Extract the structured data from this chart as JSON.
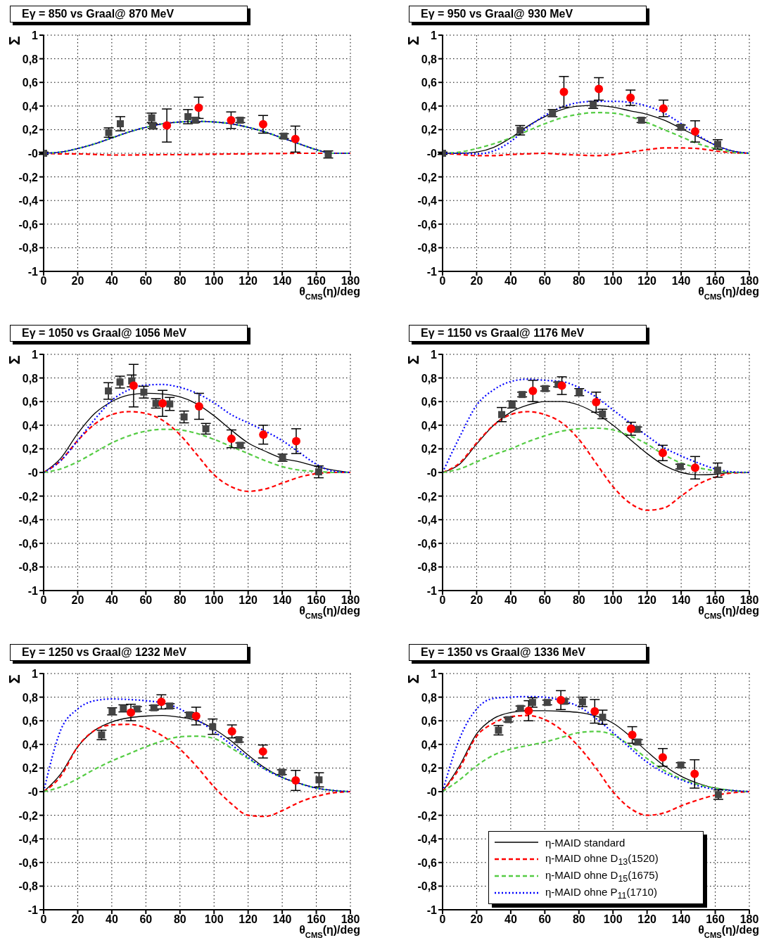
{
  "chart_data": [
    {
      "type": "line",
      "title": "Eγ = 850 vs Graal@ 870 MeV",
      "xlabel": "θ$_{CMS}$(η)/deg",
      "ylabel": "Σ",
      "x": [
        0,
        10,
        20,
        30,
        40,
        50,
        60,
        70,
        80,
        90,
        100,
        110,
        120,
        130,
        140,
        150,
        160,
        170,
        180
      ],
      "xlim": [
        0,
        180
      ],
      "xticks": [
        0,
        20,
        40,
        60,
        80,
        100,
        120,
        140,
        160,
        180
      ],
      "ylim": [
        -1,
        1
      ],
      "yticks": [
        {
          "value": -1,
          "label": "-1"
        },
        {
          "value": -0.8,
          "label": "-0,8"
        },
        {
          "value": -0.6,
          "label": "-0,6"
        },
        {
          "value": -0.4,
          "label": "-0,4"
        },
        {
          "value": -0.2,
          "label": "-0,2"
        },
        {
          "value": 0,
          "label": "-0"
        },
        {
          "value": 0.2,
          "label": "0,2"
        },
        {
          "value": 0.4,
          "label": "0,4"
        },
        {
          "value": 0.6,
          "label": "0,6"
        },
        {
          "value": 0.8,
          "label": "0,8"
        },
        {
          "value": 1,
          "label": "1"
        }
      ],
      "grid": true,
      "legend": false,
      "series": [
        {
          "color": "#000000",
          "line_style": "solid",
          "marker": "none",
          "values": [
            0,
            0.01,
            0.04,
            0.08,
            0.13,
            0.18,
            0.22,
            0.25,
            0.265,
            0.27,
            0.265,
            0.25,
            0.22,
            0.18,
            0.13,
            0.08,
            0.03,
            0,
            0
          ]
        },
        {
          "color": "#ff0000",
          "line_style": "dashed",
          "marker": "none",
          "values": [
            0,
            -0.005,
            -0.005,
            -0.01,
            -0.015,
            -0.015,
            -0.013,
            -0.012,
            -0.012,
            -0.01,
            -0.008,
            -0.006,
            -0.005,
            -0.003,
            -0.002,
            0,
            0,
            0,
            0
          ]
        },
        {
          "color": "#55cc44",
          "line_style": "dashed",
          "marker": "none",
          "values": [
            0,
            0.01,
            0.04,
            0.08,
            0.13,
            0.18,
            0.22,
            0.25,
            0.265,
            0.27,
            0.265,
            0.25,
            0.22,
            0.18,
            0.13,
            0.08,
            0.03,
            0,
            0
          ]
        },
        {
          "color": "#0000ff",
          "line_style": "dotted",
          "marker": "none",
          "values": [
            0,
            0.01,
            0.04,
            0.08,
            0.13,
            0.18,
            0.22,
            0.25,
            0.265,
            0.27,
            0.265,
            0.25,
            0.22,
            0.18,
            0.13,
            0.08,
            0.03,
            0,
            0
          ]
        },
        {
          "type": "scatter",
          "marker": "square",
          "color": "#444444",
          "x": [
            0,
            38.2,
            45,
            63.4,
            64,
            84.7,
            89,
            115.4,
            141,
            167
          ],
          "values": [
            0,
            0.175,
            0.25,
            0.3,
            0.23,
            0.31,
            0.28,
            0.28,
            0.145,
            -0.01
          ],
          "errors": [
            0.01,
            0.04,
            0.06,
            0.04,
            0.02,
            0.06,
            0.02,
            0.02,
            0.02,
            0.03
          ]
        },
        {
          "type": "scatter",
          "marker": "circle",
          "color": "#ff0000",
          "x": [
            72.3,
            91,
            110,
            128.8,
            147.7
          ],
          "values": [
            0.235,
            0.385,
            0.28,
            0.245,
            0.12
          ],
          "errors": [
            0.14,
            0.09,
            0.07,
            0.075,
            0.11
          ]
        }
      ]
    },
    {
      "type": "line",
      "title": "Eγ = 950 vs Graal@ 930 MeV",
      "xlabel": "θ$_{CMS}$(η)/deg",
      "ylabel": "Σ",
      "x": [
        0,
        10,
        20,
        30,
        40,
        50,
        60,
        70,
        80,
        90,
        100,
        110,
        120,
        130,
        140,
        150,
        160,
        170,
        180
      ],
      "xlim": [
        0,
        180
      ],
      "xticks": [
        0,
        20,
        40,
        60,
        80,
        100,
        120,
        140,
        160,
        180
      ],
      "ylim": [
        -1,
        1
      ],
      "yticks": [
        {
          "value": -1,
          "label": "-1"
        },
        {
          "value": -0.8,
          "label": "-0,8"
        },
        {
          "value": -0.6,
          "label": "-0,6"
        },
        {
          "value": -0.4,
          "label": "-0,4"
        },
        {
          "value": -0.2,
          "label": "-0,2"
        },
        {
          "value": 0,
          "label": "-0"
        },
        {
          "value": 0.2,
          "label": "0,2"
        },
        {
          "value": 0.4,
          "label": "0,4"
        },
        {
          "value": 0.6,
          "label": "0,6"
        },
        {
          "value": 0.8,
          "label": "0,8"
        },
        {
          "value": 1,
          "label": "1"
        }
      ],
      "grid": true,
      "legend": false,
      "series": [
        {
          "color": "#000000",
          "line_style": "solid",
          "marker": "none",
          "values": [
            0,
            0,
            0.01,
            0.05,
            0.13,
            0.23,
            0.31,
            0.37,
            0.4,
            0.405,
            0.39,
            0.36,
            0.33,
            0.28,
            0.21,
            0.14,
            0.07,
            0.02,
            0
          ]
        },
        {
          "color": "#ff0000",
          "line_style": "dashed",
          "marker": "none",
          "values": [
            0,
            -0.01,
            -0.02,
            -0.02,
            -0.01,
            -0.005,
            0,
            -0.01,
            -0.015,
            -0.02,
            -0.01,
            0.01,
            0.03,
            0.045,
            0.045,
            0.04,
            0.02,
            0.005,
            0
          ]
        },
        {
          "color": "#55cc44",
          "line_style": "dashed",
          "marker": "none",
          "values": [
            0,
            0.01,
            0.04,
            0.08,
            0.13,
            0.19,
            0.25,
            0.3,
            0.33,
            0.345,
            0.34,
            0.31,
            0.26,
            0.2,
            0.14,
            0.08,
            0.04,
            0.01,
            0
          ]
        },
        {
          "color": "#0000ff",
          "line_style": "dotted",
          "marker": "none",
          "values": [
            0,
            0,
            -0.005,
            0.02,
            0.1,
            0.22,
            0.32,
            0.39,
            0.43,
            0.44,
            0.44,
            0.43,
            0.4,
            0.34,
            0.25,
            0.15,
            0.07,
            0.02,
            0
          ]
        },
        {
          "type": "scatter",
          "marker": "square",
          "color": "#444444",
          "x": [
            0,
            45.5,
            64.5,
            88.4,
            116.7,
            139.8,
            161.4
          ],
          "values": [
            0,
            0.195,
            0.34,
            0.41,
            0.28,
            0.22,
            0.075
          ],
          "errors": [
            0.01,
            0.04,
            0.03,
            0.03,
            0.02,
            0.02,
            0.04
          ]
        },
        {
          "type": "scatter",
          "marker": "circle",
          "color": "#ff0000",
          "x": [
            71.2,
            91.7,
            110.3,
            129.6,
            148.2
          ],
          "values": [
            0.52,
            0.545,
            0.47,
            0.38,
            0.185
          ],
          "errors": [
            0.13,
            0.095,
            0.065,
            0.07,
            0.09
          ]
        }
      ]
    },
    {
      "type": "line",
      "title": "Eγ = 1050 vs Graal@ 1056 MeV",
      "xlabel": "θ$_{CMS}$(η)/deg",
      "ylabel": "Σ",
      "x": [
        0,
        10,
        20,
        30,
        40,
        50,
        60,
        70,
        80,
        90,
        100,
        110,
        120,
        130,
        140,
        150,
        160,
        170,
        180
      ],
      "xlim": [
        0,
        180
      ],
      "xticks": [
        0,
        20,
        40,
        60,
        80,
        100,
        120,
        140,
        160,
        180
      ],
      "ylim": [
        -1,
        1
      ],
      "yticks": [
        {
          "value": -1,
          "label": "-1"
        },
        {
          "value": -0.8,
          "label": "-0,8"
        },
        {
          "value": -0.6,
          "label": "-0,6"
        },
        {
          "value": -0.4,
          "label": "-0,4"
        },
        {
          "value": -0.2,
          "label": "-0,2"
        },
        {
          "value": 0,
          "label": "-0"
        },
        {
          "value": 0.2,
          "label": "0,2"
        },
        {
          "value": 0.4,
          "label": "0,4"
        },
        {
          "value": 0.6,
          "label": "0,6"
        },
        {
          "value": 0.8,
          "label": "0,8"
        },
        {
          "value": 1,
          "label": "1"
        }
      ],
      "grid": true,
      "legend": false,
      "series": [
        {
          "color": "#000000",
          "line_style": "solid",
          "marker": "none",
          "values": [
            0,
            0.12,
            0.33,
            0.5,
            0.6,
            0.655,
            0.67,
            0.665,
            0.64,
            0.58,
            0.48,
            0.36,
            0.25,
            0.18,
            0.12,
            0.09,
            0.05,
            0.02,
            0
          ]
        },
        {
          "color": "#ff0000",
          "line_style": "dashed",
          "marker": "none",
          "values": [
            0,
            0.1,
            0.27,
            0.41,
            0.49,
            0.515,
            0.5,
            0.44,
            0.32,
            0.15,
            -0.02,
            -0.12,
            -0.16,
            -0.14,
            -0.09,
            -0.04,
            -0.01,
            0,
            0
          ]
        },
        {
          "color": "#55cc44",
          "line_style": "dashed",
          "marker": "none",
          "values": [
            0,
            0.03,
            0.09,
            0.17,
            0.25,
            0.31,
            0.35,
            0.365,
            0.36,
            0.33,
            0.28,
            0.22,
            0.16,
            0.1,
            0.05,
            0.02,
            0.01,
            0,
            0
          ]
        },
        {
          "color": "#0000ff",
          "line_style": "dotted",
          "marker": "none",
          "values": [
            0,
            0.1,
            0.27,
            0.45,
            0.61,
            0.7,
            0.74,
            0.745,
            0.72,
            0.67,
            0.59,
            0.49,
            0.42,
            0.35,
            0.27,
            0.17,
            0.07,
            0.01,
            0
          ]
        },
        {
          "type": "scatter",
          "marker": "square",
          "color": "#444444",
          "x": [
            38,
            44.8,
            51.7,
            58.8,
            65.9,
            74,
            82.4,
            95.2,
            115.4,
            140.2,
            161.4
          ],
          "values": [
            0.69,
            0.765,
            0.775,
            0.68,
            0.585,
            0.58,
            0.47,
            0.37,
            0.23,
            0.125,
            0.005
          ],
          "errors": [
            0.07,
            0.05,
            0.05,
            0.05,
            0.04,
            0.055,
            0.05,
            0.045,
            0.02,
            0.03,
            0.05
          ]
        },
        {
          "type": "scatter",
          "marker": "circle",
          "color": "#ff0000",
          "x": [
            52.8,
            69.8,
            91.2,
            110.2,
            128.9,
            148.2
          ],
          "values": [
            0.735,
            0.585,
            0.56,
            0.285,
            0.32,
            0.265
          ],
          "errors": [
            0.18,
            0.11,
            0.11,
            0.075,
            0.08,
            0.105
          ]
        }
      ]
    },
    {
      "type": "line",
      "title": "Eγ = 1150 vs Graal@ 1176 MeV",
      "xlabel": "θ$_{CMS}$(η)/deg",
      "ylabel": "Σ",
      "x": [
        0,
        10,
        20,
        30,
        40,
        50,
        60,
        70,
        80,
        90,
        100,
        110,
        120,
        130,
        140,
        150,
        160,
        170,
        180
      ],
      "xlim": [
        0,
        180
      ],
      "xticks": [
        0,
        20,
        40,
        60,
        80,
        100,
        120,
        140,
        160,
        180
      ],
      "ylim": [
        -1,
        1
      ],
      "yticks": [
        {
          "value": -1,
          "label": "-1"
        },
        {
          "value": -0.8,
          "label": "-0,8"
        },
        {
          "value": -0.6,
          "label": "-0,6"
        },
        {
          "value": -0.4,
          "label": "-0,4"
        },
        {
          "value": -0.2,
          "label": "-0,2"
        },
        {
          "value": 0,
          "label": "-0"
        },
        {
          "value": 0.2,
          "label": "0,2"
        },
        {
          "value": 0.4,
          "label": "0,4"
        },
        {
          "value": 0.6,
          "label": "0,6"
        },
        {
          "value": 0.8,
          "label": "0,8"
        },
        {
          "value": 1,
          "label": "1"
        }
      ],
      "grid": true,
      "legend": false,
      "series": [
        {
          "color": "#000000",
          "line_style": "solid",
          "marker": "none",
          "values": [
            0,
            0.07,
            0.24,
            0.4,
            0.51,
            0.57,
            0.6,
            0.6,
            0.57,
            0.5,
            0.4,
            0.28,
            0.16,
            0.06,
            0,
            -0.02,
            -0.015,
            0,
            0
          ]
        },
        {
          "color": "#ff0000",
          "line_style": "dashed",
          "marker": "none",
          "values": [
            0,
            0.08,
            0.25,
            0.4,
            0.49,
            0.515,
            0.49,
            0.42,
            0.28,
            0.08,
            -0.12,
            -0.26,
            -0.32,
            -0.3,
            -0.2,
            -0.1,
            -0.04,
            -0.005,
            0
          ]
        },
        {
          "color": "#55cc44",
          "line_style": "dashed",
          "marker": "none",
          "values": [
            0,
            0.03,
            0.09,
            0.15,
            0.2,
            0.26,
            0.31,
            0.35,
            0.37,
            0.375,
            0.36,
            0.31,
            0.24,
            0.15,
            0.08,
            0.04,
            0.015,
            0,
            0
          ]
        },
        {
          "color": "#0000ff",
          "line_style": "dotted",
          "marker": "none",
          "values": [
            0,
            0.3,
            0.57,
            0.7,
            0.77,
            0.79,
            0.78,
            0.77,
            0.72,
            0.64,
            0.53,
            0.42,
            0.31,
            0.21,
            0.14,
            0.08,
            0.03,
            0.005,
            0
          ]
        },
        {
          "type": "scatter",
          "marker": "square",
          "color": "#444444",
          "x": [
            34.7,
            40.8,
            46.7,
            60.2,
            67.8,
            80.2,
            93.8,
            114.2,
            139.5,
            161.4
          ],
          "values": [
            0.49,
            0.575,
            0.66,
            0.71,
            0.745,
            0.68,
            0.495,
            0.365,
            0.05,
            0.02
          ],
          "errors": [
            0.06,
            0.03,
            0.02,
            0.02,
            0.02,
            0.03,
            0.04,
            0.02,
            0.02,
            0.06
          ]
        },
        {
          "type": "scatter",
          "marker": "circle",
          "color": "#ff0000",
          "x": [
            53,
            70,
            90.1,
            110.6,
            129.2,
            148.2
          ],
          "values": [
            0.69,
            0.735,
            0.595,
            0.37,
            0.165,
            0.04
          ],
          "errors": [
            0.09,
            0.075,
            0.085,
            0.055,
            0.065,
            0.095
          ]
        }
      ]
    },
    {
      "type": "line",
      "title": "Eγ = 1250 vs Graal@ 1232 MeV",
      "xlabel": "θ$_{CMS}$(η)/deg",
      "ylabel": "Σ",
      "x": [
        0,
        10,
        20,
        30,
        40,
        50,
        60,
        70,
        80,
        90,
        100,
        110,
        120,
        130,
        140,
        150,
        160,
        170,
        180
      ],
      "xlim": [
        0,
        180
      ],
      "xticks": [
        0,
        20,
        40,
        60,
        80,
        100,
        120,
        140,
        160,
        180
      ],
      "ylim": [
        -1,
        1
      ],
      "yticks": [
        {
          "value": -1,
          "label": "-1"
        },
        {
          "value": -0.8,
          "label": "-0,8"
        },
        {
          "value": -0.6,
          "label": "-0,6"
        },
        {
          "value": -0.4,
          "label": "-0,4"
        },
        {
          "value": -0.2,
          "label": "-0,2"
        },
        {
          "value": 0,
          "label": "-0"
        },
        {
          "value": 0.2,
          "label": "0,2"
        },
        {
          "value": 0.4,
          "label": "0,4"
        },
        {
          "value": 0.6,
          "label": "0,6"
        },
        {
          "value": 0.8,
          "label": "0,8"
        },
        {
          "value": 1,
          "label": "1"
        }
      ],
      "grid": true,
      "legend": false,
      "series": [
        {
          "color": "#000000",
          "line_style": "solid",
          "marker": "none",
          "values": [
            0,
            0.15,
            0.38,
            0.52,
            0.59,
            0.625,
            0.64,
            0.645,
            0.63,
            0.6,
            0.53,
            0.43,
            0.31,
            0.2,
            0.12,
            0.07,
            0.03,
            0.01,
            0
          ]
        },
        {
          "color": "#ff0000",
          "line_style": "dashed",
          "marker": "none",
          "values": [
            0,
            0.13,
            0.38,
            0.52,
            0.565,
            0.57,
            0.54,
            0.47,
            0.36,
            0.21,
            0.04,
            -0.1,
            -0.2,
            -0.21,
            -0.16,
            -0.09,
            -0.04,
            -0.01,
            0
          ]
        },
        {
          "color": "#55cc44",
          "line_style": "dashed",
          "marker": "none",
          "values": [
            0,
            0.04,
            0.11,
            0.19,
            0.26,
            0.32,
            0.38,
            0.43,
            0.465,
            0.47,
            0.45,
            0.37,
            0.28,
            0.19,
            0.12,
            0.07,
            0.03,
            0.01,
            0
          ]
        },
        {
          "color": "#0000ff",
          "line_style": "dotted",
          "marker": "none",
          "values": [
            0,
            0.52,
            0.7,
            0.77,
            0.785,
            0.78,
            0.77,
            0.75,
            0.7,
            0.61,
            0.51,
            0.4,
            0.29,
            0.19,
            0.12,
            0.07,
            0.03,
            0.01,
            0
          ]
        },
        {
          "type": "scatter",
          "marker": "square",
          "color": "#444444",
          "x": [
            34,
            40.2,
            46.8,
            54.8,
            64.7,
            74,
            85.5,
            99.2,
            114.6,
            139.8,
            161.6
          ],
          "values": [
            0.48,
            0.68,
            0.705,
            0.7,
            0.71,
            0.725,
            0.65,
            0.55,
            0.44,
            0.165,
            0.1
          ],
          "errors": [
            0.04,
            0.03,
            0.03,
            0.02,
            0.02,
            0.02,
            0.02,
            0.065,
            0.02,
            0.02,
            0.06
          ]
        },
        {
          "type": "scatter",
          "marker": "circle",
          "color": "#ff0000",
          "x": [
            51.2,
            69.1,
            89.5,
            110.5,
            128.7,
            147.9
          ],
          "values": [
            0.67,
            0.76,
            0.64,
            0.51,
            0.34,
            0.095
          ],
          "errors": [
            0.07,
            0.06,
            0.075,
            0.055,
            0.055,
            0.085
          ]
        }
      ]
    },
    {
      "type": "line",
      "title": "Eγ = 1350 vs Graal@ 1336 MeV",
      "xlabel": "θ$_{CMS}$(η)/deg",
      "ylabel": "Σ",
      "x": [
        0,
        10,
        20,
        30,
        40,
        50,
        60,
        70,
        80,
        90,
        100,
        110,
        120,
        130,
        140,
        150,
        160,
        170,
        180
      ],
      "xlim": [
        0,
        180
      ],
      "xticks": [
        0,
        20,
        40,
        60,
        80,
        100,
        120,
        140,
        160,
        180
      ],
      "ylim": [
        -1,
        1
      ],
      "yticks": [
        {
          "value": -1,
          "label": "-1"
        },
        {
          "value": -0.8,
          "label": "-0,8"
        },
        {
          "value": -0.6,
          "label": "-0,6"
        },
        {
          "value": -0.4,
          "label": "-0,4"
        },
        {
          "value": -0.2,
          "label": "-0,2"
        },
        {
          "value": 0,
          "label": "-0"
        },
        {
          "value": 0.2,
          "label": "0,2"
        },
        {
          "value": 0.4,
          "label": "0,4"
        },
        {
          "value": 0.6,
          "label": "0,6"
        },
        {
          "value": 0.8,
          "label": "0,8"
        },
        {
          "value": 1,
          "label": "1"
        }
      ],
      "grid": true,
      "legend": "bottom",
      "series": [
        {
          "name": "η-MAID standard",
          "color": "#000000",
          "line_style": "solid",
          "marker": "none",
          "values": [
            0,
            0.22,
            0.49,
            0.62,
            0.67,
            0.685,
            0.685,
            0.68,
            0.67,
            0.64,
            0.58,
            0.47,
            0.34,
            0.22,
            0.13,
            0.07,
            0.03,
            0.01,
            0
          ]
        },
        {
          "name": "η-MAID ohne D$_{13}$(1520)",
          "color": "#ff0000",
          "line_style": "dashed",
          "marker": "none",
          "values": [
            0,
            0.2,
            0.47,
            0.58,
            0.635,
            0.645,
            0.61,
            0.52,
            0.38,
            0.2,
            0,
            -0.14,
            -0.2,
            -0.18,
            -0.12,
            -0.07,
            -0.03,
            -0.01,
            0
          ]
        },
        {
          "name": "η-MAID ohne D$_{15}$(1675)",
          "color": "#55cc44",
          "line_style": "dashed",
          "marker": "none",
          "values": [
            0,
            0.1,
            0.22,
            0.31,
            0.36,
            0.39,
            0.42,
            0.46,
            0.5,
            0.51,
            0.48,
            0.39,
            0.28,
            0.18,
            0.11,
            0.06,
            0.03,
            0.01,
            0
          ]
        },
        {
          "name": "η-MAID ohne P$_{11}$(1710)",
          "color": "#0000ff",
          "line_style": "dotted",
          "marker": "none",
          "values": [
            0,
            0.45,
            0.7,
            0.79,
            0.8,
            0.805,
            0.8,
            0.77,
            0.72,
            0.62,
            0.5,
            0.37,
            0.25,
            0.16,
            0.1,
            0.05,
            0.02,
            0.01,
            0
          ]
        },
        {
          "type": "scatter",
          "marker": "square",
          "color": "#444444",
          "x": [
            32.8,
            38.6,
            45.7,
            52.8,
            61.4,
            71.6,
            82.1,
            93.9,
            114.6,
            139.8,
            161.8
          ],
          "values": [
            0.52,
            0.61,
            0.705,
            0.755,
            0.755,
            0.765,
            0.76,
            0.63,
            0.42,
            0.225,
            -0.025
          ],
          "errors": [
            0.04,
            0.02,
            0.02,
            0.04,
            0.02,
            0.02,
            0.04,
            0.06,
            0.02,
            0.02,
            0.04
          ]
        },
        {
          "type": "scatter",
          "marker": "circle",
          "color": "#ff0000",
          "x": [
            50.5,
            69.4,
            89.3,
            111.3,
            129.2,
            147.9
          ],
          "values": [
            0.685,
            0.775,
            0.68,
            0.48,
            0.29,
            0.15
          ],
          "errors": [
            0.085,
            0.08,
            0.1,
            0.07,
            0.075,
            0.12
          ]
        }
      ]
    }
  ]
}
